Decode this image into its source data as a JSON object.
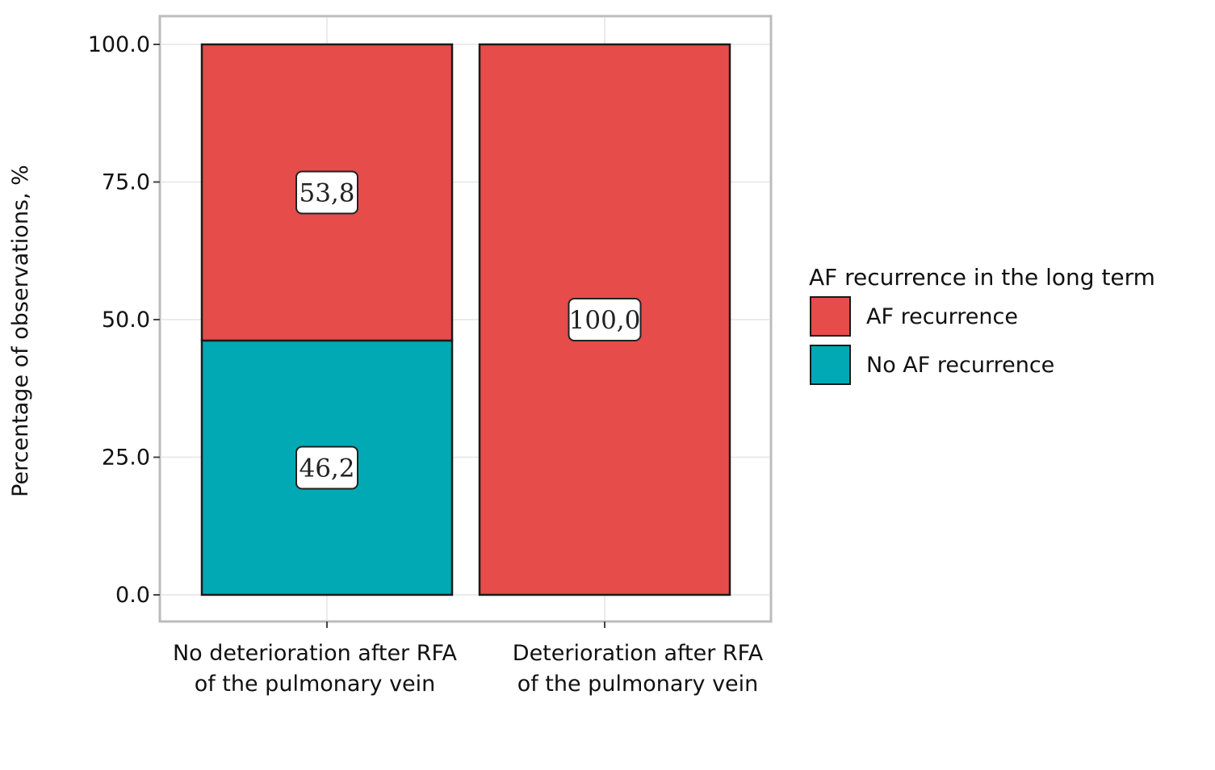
{
  "chart_data": {
    "type": "bar",
    "stacked": true,
    "percent": true,
    "categories": [
      [
        "No deterioration after RFA",
        "of the pulmonary vein"
      ],
      [
        "Deterioration after RFA",
        "of the pulmonary vein"
      ]
    ],
    "series": [
      {
        "name": "No AF recurrence",
        "color": "#00A9B4",
        "values": [
          46.2,
          0.0
        ],
        "labels": [
          "46,2",
          ""
        ]
      },
      {
        "name": "AF recurrence",
        "color": "#E54C4A",
        "values": [
          53.8,
          100.0
        ],
        "labels": [
          "53,8",
          "100,0"
        ]
      }
    ],
    "ylabel": "Percentage of observations, %",
    "xlabel": "",
    "ylim": [
      0,
      100
    ],
    "yticks": [
      "0.0",
      "25.0",
      "50.0",
      "75.0",
      "100.0"
    ],
    "grid": true,
    "legend": {
      "title": "AF recurrence in the long term",
      "position": "right",
      "entries": [
        "AF recurrence",
        "No AF recurrence"
      ]
    }
  }
}
